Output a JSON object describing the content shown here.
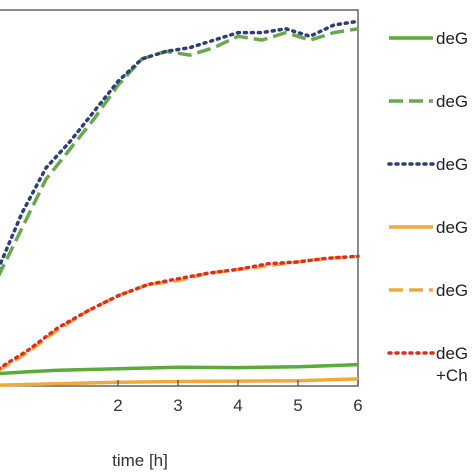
{
  "chart_data": {
    "type": "line",
    "title": "",
    "xlabel": "time [h]",
    "ylabel": "",
    "xlim": [
      0.0,
      6.0
    ],
    "ylim": [
      0,
      100
    ],
    "x_ticks": [
      2,
      3,
      4,
      5,
      6
    ],
    "x_tick_labels": [
      "2",
      "3",
      "4",
      "5",
      "6"
    ],
    "grid": false,
    "legend_position": "right",
    "series": [
      {
        "name": "deG",
        "color": "#5aab3c",
        "style": "solid",
        "x": [
          0.0,
          0.5,
          1.0,
          2.0,
          3.0,
          4.0,
          5.0,
          5.5,
          6.0
        ],
        "y": [
          3.3,
          3.8,
          4.2,
          4.6,
          5.0,
          4.9,
          5.1,
          5.4,
          5.7
        ]
      },
      {
        "name": "deG",
        "color": "#6aa84f",
        "style": "dashed",
        "x": [
          0.0,
          0.4,
          0.8,
          1.2,
          1.6,
          2.0,
          2.4,
          2.8,
          3.2,
          3.6,
          4.0,
          4.4,
          4.8,
          5.2,
          5.6,
          6.0
        ],
        "y": [
          29,
          42,
          55,
          63,
          71,
          80,
          87,
          89,
          88,
          90,
          93,
          92,
          94,
          92,
          94,
          95
        ]
      },
      {
        "name": "deG",
        "color": "#2e3f78",
        "style": "dotted",
        "x": [
          0.0,
          0.4,
          0.8,
          1.2,
          1.6,
          2.0,
          2.4,
          2.8,
          3.2,
          3.6,
          4.0,
          4.4,
          4.8,
          5.2,
          5.6,
          6.0
        ],
        "y": [
          31,
          46,
          58,
          65,
          73,
          81,
          87,
          89,
          90,
          92,
          94,
          94,
          95,
          93,
          96,
          97
        ]
      },
      {
        "name": "deG",
        "color": "#f2a93b",
        "style": "solid",
        "x": [
          0.0,
          1.0,
          2.0,
          3.0,
          4.0,
          5.0,
          6.0
        ],
        "y": [
          0.2,
          0.6,
          1.0,
          1.2,
          1.3,
          1.4,
          1.9
        ]
      },
      {
        "name": "deG",
        "color": "#f2a93b",
        "style": "dashed",
        "x": [
          0.0,
          0.5,
          1.0,
          1.5,
          2.0,
          2.5,
          3.0,
          3.5,
          4.0,
          4.5,
          5.0,
          5.5,
          6.0
        ],
        "y": [
          4,
          9,
          15,
          20,
          24,
          27,
          28,
          30,
          31,
          32,
          33,
          34,
          34.5
        ]
      },
      {
        "name": "deG",
        "name_line2": "+Ch",
        "color": "#d93025",
        "style": "dotted",
        "x": [
          0.0,
          0.5,
          1.0,
          1.5,
          2.0,
          2.5,
          3.0,
          3.5,
          4.0,
          4.5,
          5.0,
          5.5,
          6.0
        ],
        "y": [
          4.5,
          9.5,
          15.5,
          20,
          24,
          27,
          28.5,
          30,
          31,
          32.5,
          33,
          34,
          34.5
        ]
      }
    ]
  }
}
